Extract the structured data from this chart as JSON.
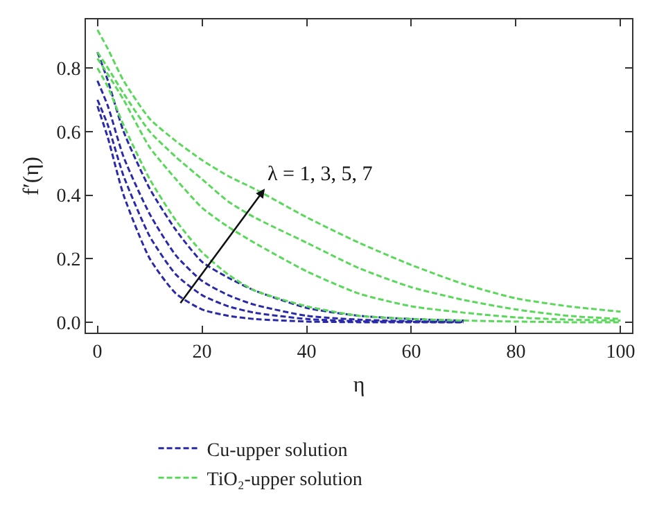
{
  "chart_data": {
    "type": "line",
    "xlabel": "η",
    "ylabel": "f′(η)",
    "xlim": [
      -2.2,
      102.2
    ],
    "ylim": [
      -0.033,
      0.953
    ],
    "xticks": [
      0,
      20,
      40,
      60,
      80,
      100
    ],
    "yticks": [
      {
        "value": 0,
        "label": "0.0"
      },
      {
        "value": 0.2,
        "label": "0.2"
      },
      {
        "value": 0.4,
        "label": "0.4"
      },
      {
        "value": 0.6,
        "label": "0.6"
      },
      {
        "value": 0.8,
        "label": "0.8"
      }
    ],
    "line_style": "dashed",
    "marker": "none",
    "grid": false,
    "legend": "bottom",
    "annotations": [
      {
        "text": "λ = 1, 3, 5, 7",
        "x": 32,
        "y": 0.42
      }
    ],
    "series": [
      {
        "name": "Cu-upper solution",
        "color": "#2a2aa8",
        "x": [
          0,
          2,
          5,
          10,
          15,
          20,
          25,
          30,
          40,
          50,
          60,
          70
        ],
        "values": [
          0.85,
          0.76,
          0.6,
          0.42,
          0.29,
          0.19,
          0.14,
          0.1,
          0.045,
          0.02,
          0.01,
          0.005
        ]
      },
      {
        "color": "#2a2aa8",
        "x": [
          0,
          2,
          5,
          10,
          15,
          20,
          25,
          30,
          40,
          50,
          60,
          70
        ],
        "values": [
          0.76,
          0.68,
          0.52,
          0.34,
          0.21,
          0.13,
          0.085,
          0.055,
          0.02,
          0.008,
          0.003,
          0.001
        ]
      },
      {
        "color": "#2a2aa8",
        "x": [
          0,
          2,
          5,
          10,
          15,
          20,
          25,
          30,
          40,
          50,
          60,
          70
        ],
        "values": [
          0.7,
          0.62,
          0.46,
          0.27,
          0.15,
          0.085,
          0.05,
          0.03,
          0.01,
          0.003,
          0.001,
          0
        ]
      },
      {
        "color": "#2a2aa8",
        "x": [
          0,
          2,
          5,
          10,
          15,
          20,
          25,
          30,
          40,
          50,
          60,
          70
        ],
        "values": [
          0.68,
          0.58,
          0.4,
          0.2,
          0.09,
          0.04,
          0.02,
          0.01,
          0.002,
          0,
          0,
          0
        ]
      },
      {
        "name": "TiO₂-upper solution",
        "color": "#5ad85a",
        "x": [
          0,
          2,
          5,
          10,
          15,
          20,
          25,
          30,
          40,
          50,
          60,
          70,
          80,
          90,
          100
        ],
        "values": [
          0.92,
          0.86,
          0.76,
          0.64,
          0.57,
          0.51,
          0.46,
          0.42,
          0.33,
          0.25,
          0.18,
          0.12,
          0.075,
          0.05,
          0.033
        ]
      },
      {
        "color": "#5ad85a",
        "x": [
          0,
          2,
          5,
          10,
          15,
          20,
          25,
          30,
          40,
          50,
          60,
          70,
          80,
          90,
          100
        ],
        "values": [
          0.85,
          0.8,
          0.72,
          0.6,
          0.52,
          0.45,
          0.38,
          0.33,
          0.25,
          0.17,
          0.11,
          0.07,
          0.04,
          0.02,
          0.01
        ]
      },
      {
        "color": "#5ad85a",
        "x": [
          0,
          2,
          5,
          10,
          15,
          20,
          25,
          30,
          40,
          50,
          60,
          70,
          80,
          90,
          100
        ],
        "values": [
          0.83,
          0.78,
          0.7,
          0.55,
          0.45,
          0.36,
          0.3,
          0.25,
          0.16,
          0.09,
          0.05,
          0.03,
          0.015,
          0.008,
          0.005
        ]
      },
      {
        "color": "#5ad85a",
        "x": [
          0,
          2,
          5,
          10,
          15,
          20,
          25,
          30,
          40,
          50,
          60,
          70,
          80,
          90,
          100
        ],
        "values": [
          0.8,
          0.74,
          0.62,
          0.45,
          0.32,
          0.22,
          0.15,
          0.1,
          0.05,
          0.02,
          0.01,
          0.005,
          0.002,
          0,
          0
        ]
      }
    ]
  }
}
